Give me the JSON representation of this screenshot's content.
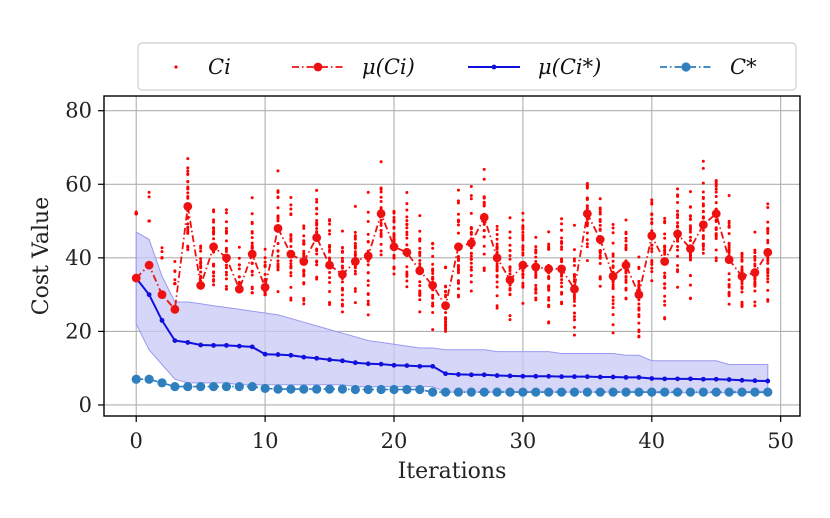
{
  "chart_data": {
    "type": "line",
    "xlabel": "Iterations",
    "ylabel": "Cost Value",
    "xlim": [
      -2.5,
      51.5
    ],
    "ylim": [
      -3,
      84
    ],
    "xticks": [
      0,
      10,
      20,
      30,
      40,
      50
    ],
    "yticks": [
      0,
      20,
      40,
      60,
      80
    ],
    "grid": true,
    "legend_position": "top",
    "colors": {
      "samples": "#ff0000",
      "mean": "#ee1111",
      "mean_best": "#1111dd",
      "band": "#c8c8f6",
      "best": "#2f7fbf"
    },
    "x": [
      0,
      1,
      2,
      3,
      4,
      5,
      6,
      7,
      8,
      9,
      10,
      11,
      12,
      13,
      14,
      15,
      16,
      17,
      18,
      19,
      20,
      21,
      22,
      23,
      24,
      25,
      26,
      27,
      28,
      29,
      30,
      31,
      32,
      33,
      34,
      35,
      36,
      37,
      38,
      39,
      40,
      41,
      42,
      43,
      44,
      45,
      46,
      47,
      48,
      49
    ],
    "series": [
      {
        "name": "C_i",
        "legend_label": "Ci",
        "style": "scatter",
        "spread": [
          30,
          24,
          19,
          16,
          22,
          18,
          19,
          19,
          17,
          20,
          19,
          20,
          20,
          19,
          20,
          20,
          19,
          19,
          20,
          20,
          20,
          20,
          19,
          19,
          18,
          20,
          20,
          21,
          20,
          20,
          20,
          20,
          20,
          20,
          19,
          20,
          20,
          20,
          19,
          18,
          20,
          20,
          20,
          20,
          20,
          20,
          20,
          17,
          17,
          19
        ]
      },
      {
        "name": "mu(C_i)",
        "legend_label": "μ(Ci)",
        "style": "dashed-dot-marker",
        "values": [
          34.5,
          38,
          30,
          26,
          54,
          32.5,
          43,
          40,
          31.5,
          41,
          32,
          48,
          41,
          39,
          45.5,
          38,
          35.5,
          39,
          40.5,
          52,
          43,
          41.5,
          36.5,
          32.5,
          27,
          43,
          44,
          51,
          40,
          34,
          38,
          37.5,
          37,
          37,
          31.5,
          52,
          45,
          35,
          38,
          30,
          46,
          39,
          46.5,
          42.5,
          49,
          52,
          39.5,
          35,
          36,
          41.5
        ]
      },
      {
        "name": "mu(C_i*)",
        "legend_label": "μ(Ci*)",
        "style": "solid-small-marker",
        "values": [
          34.5,
          30,
          23,
          17.5,
          17,
          16.3,
          16.2,
          16.2,
          16,
          15.8,
          13.8,
          13.7,
          13.5,
          13,
          12.7,
          12.3,
          12,
          11.5,
          11.2,
          11.1,
          10.8,
          10.7,
          10.5,
          10.5,
          8.5,
          8.3,
          8.2,
          8.2,
          8,
          7.9,
          7.8,
          7.8,
          7.8,
          7.7,
          7.7,
          7.7,
          7.6,
          7.6,
          7.5,
          7.5,
          7.2,
          7.1,
          7.1,
          7.1,
          7,
          7,
          6.9,
          6.7,
          6.6,
          6.5
        ],
        "band_upper": [
          47,
          45,
          35,
          28,
          28,
          27.5,
          27,
          26.5,
          26,
          25.5,
          25,
          24.5,
          23.5,
          22.5,
          21.5,
          20.5,
          19.5,
          18.5,
          17.5,
          17,
          16.5,
          16,
          15.5,
          15.5,
          15,
          15,
          15,
          15,
          14.5,
          14.5,
          14.5,
          14.5,
          14.5,
          14,
          14,
          14,
          14,
          14,
          13.5,
          13.5,
          12,
          12,
          12,
          12,
          12,
          12,
          11,
          11,
          11,
          11
        ],
        "band_lower": [
          22,
          15,
          11,
          7,
          6,
          6,
          6,
          6,
          5.5,
          5.5,
          5.5,
          5.5,
          5.5,
          5.5,
          5.5,
          5.5,
          5.5,
          5,
          5,
          5,
          5,
          5,
          5,
          5,
          3.5,
          3.5,
          3.5,
          3.5,
          3.5,
          3.5,
          3.5,
          3.5,
          3.5,
          3.5,
          3.5,
          3.5,
          3.5,
          3.5,
          3.5,
          3.5,
          3.3,
          3.3,
          3.3,
          3.3,
          3.3,
          3.3,
          3.3,
          3.3,
          3.3,
          3.3
        ]
      },
      {
        "name": "C*",
        "legend_label": "C*",
        "style": "dash-dot-marker",
        "values": [
          7,
          7,
          6,
          5,
          5,
          5,
          5,
          5,
          5,
          5,
          4.5,
          4.3,
          4.3,
          4.3,
          4.3,
          4.3,
          4.3,
          4.2,
          4.2,
          4.2,
          4.2,
          4.2,
          4.2,
          3.5,
          3.5,
          3.5,
          3.5,
          3.5,
          3.5,
          3.5,
          3.5,
          3.5,
          3.5,
          3.5,
          3.5,
          3.5,
          3.5,
          3.5,
          3.5,
          3.5,
          3.5,
          3.5,
          3.5,
          3.5,
          3.5,
          3.5,
          3.5,
          3.5,
          3.5,
          3.5
        ]
      }
    ]
  }
}
